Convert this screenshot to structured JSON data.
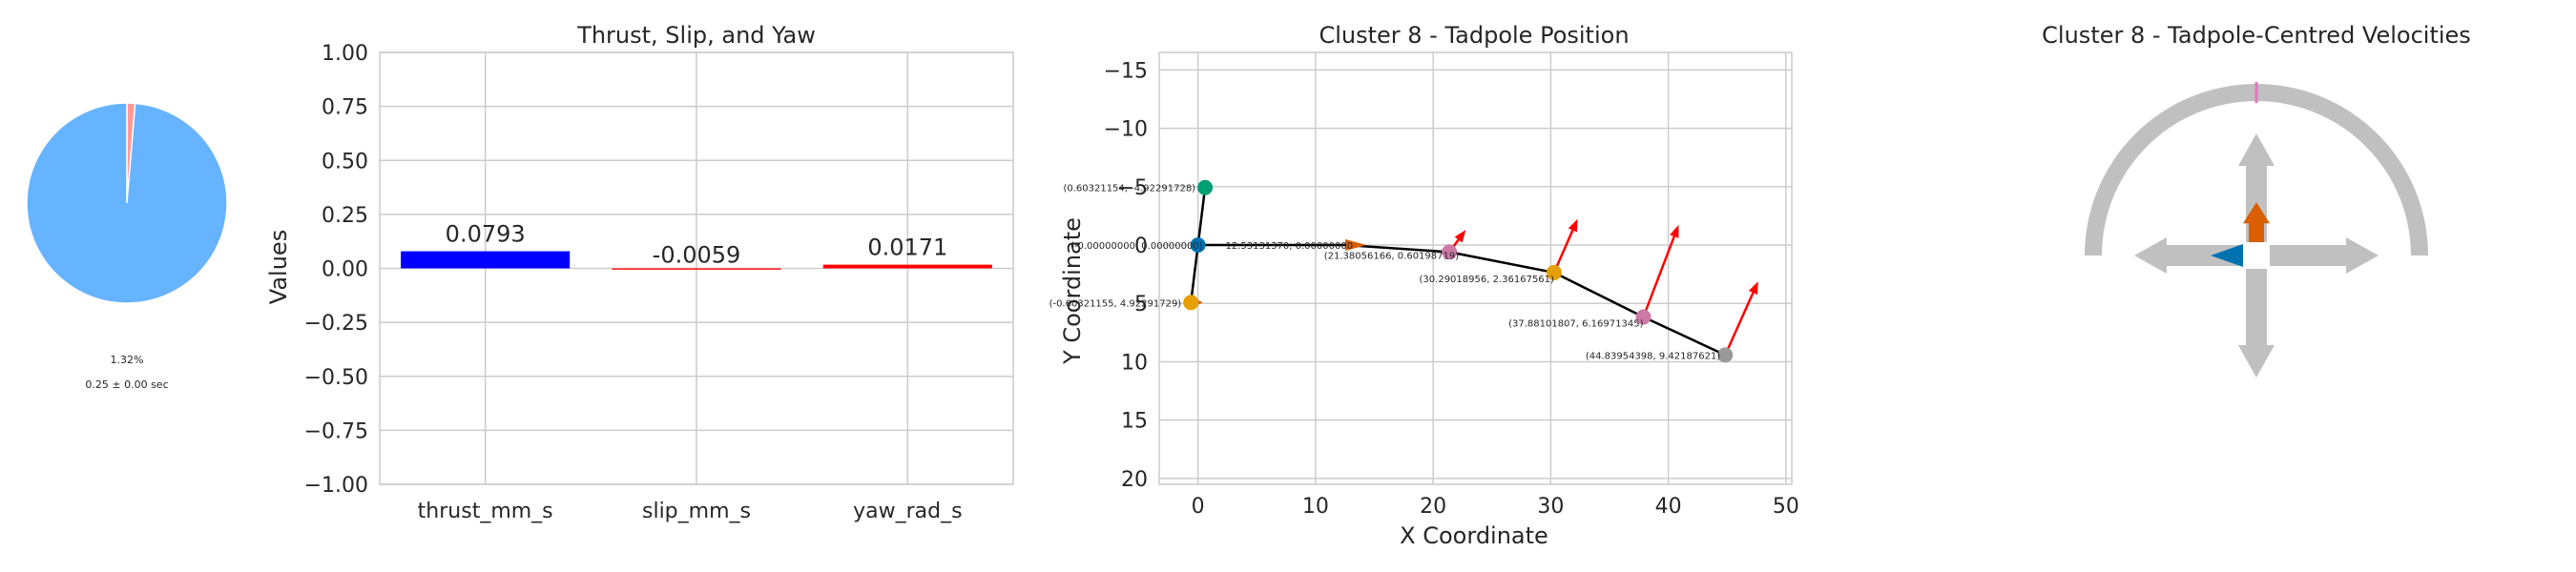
{
  "pie": {
    "percent_label": "1.32%",
    "time_label": "0.25 ± 0.00 sec",
    "slices": [
      {
        "value": 98.68,
        "color": "#66b3ff"
      },
      {
        "value": 1.32,
        "color": "#ff9999"
      }
    ]
  },
  "colors": {
    "grid": "#cccccc",
    "axis": "#cccccc",
    "text": "#262626",
    "thrust_bar": "#0000ff",
    "yaw_bar": "#ff0000",
    "path": "#000000",
    "arrow": "#ff0000",
    "gauge_gray": "#c0c0c0",
    "gauge_tick": "#e377c2",
    "thrust_arrow": "#d95f02",
    "yaw_arrow": "#0072b2"
  },
  "chart_data": [
    {
      "type": "bar",
      "title": "Thrust, Slip, and Yaw",
      "xlabel": "",
      "ylabel": "Values",
      "categories": [
        "thrust_mm_s",
        "slip_mm_s",
        "yaw_rad_s"
      ],
      "values": [
        0.0793,
        -0.0059,
        0.0171
      ],
      "value_labels": [
        "0.0793",
        "-0.0059",
        "0.0171"
      ],
      "bar_colors": [
        "#0000ff",
        "#ff0000",
        "#ff0000"
      ],
      "ylim": [
        -1.0,
        1.0
      ],
      "yticks": [
        "−1.00",
        "−0.75",
        "−0.50",
        "−0.25",
        "0.00",
        "0.25",
        "0.50",
        "0.75",
        "1.00"
      ],
      "grid": true
    },
    {
      "type": "scatter",
      "title": "Cluster 8 - Tadpole Position",
      "xlabel": "X Coordinate",
      "ylabel": "Y Coordinate",
      "xlim": [
        -3.3,
        50.5
      ],
      "ylim": [
        20.5,
        -16.5
      ],
      "y_inverted": true,
      "xticks": [
        "0",
        "10",
        "20",
        "30",
        "40",
        "50"
      ],
      "yticks": [
        "−15",
        "−10",
        "−5",
        "0",
        "5",
        "10",
        "15",
        "20"
      ],
      "grid": true,
      "points": [
        {
          "x": 0.60321154,
          "y": -4.92291728,
          "label": "(0.60321154, -4.92291728)",
          "color": "#009e73"
        },
        {
          "x": 0.0,
          "y": 0.0,
          "label": "(-0.00000000, 0.00000000)",
          "color": "#0072b2"
        },
        {
          "x": -0.60321155,
          "y": 4.92291729,
          "label": "(-0.60321155, 4.92291729)",
          "color": "#e69f00"
        },
        {
          "x": 12.53,
          "y": 0.0,
          "label": "12.53131370, 0.00000000",
          "color": "#d55e00"
        },
        {
          "x": 21.38,
          "y": 0.6,
          "label": "(21.38056166, 0.60198719)",
          "color": "#cc79a7"
        },
        {
          "x": 30.29018956,
          "y": 2.36167561,
          "label": "(30.29018956, 2.36167561)",
          "color": "#e69f00"
        },
        {
          "x": 37.88101807,
          "y": 6.16971345,
          "label": "(37.88101807, 6.16971345)",
          "color": "#cc79a7"
        },
        {
          "x": 44.83954398,
          "y": 9.42187621,
          "label": "(44.83954398, 9.42187621)",
          "color": "#999999"
        }
      ],
      "velocity_arrows": [
        {
          "x": 21.38,
          "y": 0.6,
          "dx": 1.4,
          "dy": -1.9
        },
        {
          "x": 30.29,
          "y": 2.36,
          "dx": 2.0,
          "dy": -4.6
        },
        {
          "x": 37.88,
          "y": 6.17,
          "dx": 3.0,
          "dy": -7.9
        },
        {
          "x": 44.84,
          "y": 9.42,
          "dx": 2.8,
          "dy": -6.3
        }
      ],
      "heading_arrows": [
        {
          "x": 12.53,
          "y": 0.0,
          "dx": 1.8,
          "dy": 0.0,
          "color": "#d55e00"
        },
        {
          "x": -0.6,
          "y": 4.92,
          "dx": 1.0,
          "dy": 0.0,
          "color": "#d55e00"
        }
      ]
    },
    {
      "type": "gauge",
      "title": "Cluster 8 - Tadpole-Centred Velocities",
      "thrust": 0.0793,
      "slip": -0.0059,
      "yaw": 0.0171
    }
  ]
}
